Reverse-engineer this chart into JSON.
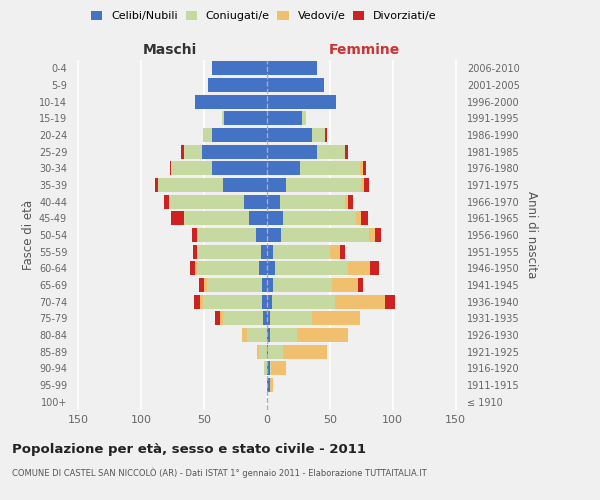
{
  "age_groups": [
    "100+",
    "95-99",
    "90-94",
    "85-89",
    "80-84",
    "75-79",
    "70-74",
    "65-69",
    "60-64",
    "55-59",
    "50-54",
    "45-49",
    "40-44",
    "35-39",
    "30-34",
    "25-29",
    "20-24",
    "15-19",
    "10-14",
    "5-9",
    "0-4"
  ],
  "birth_years": [
    "≤ 1910",
    "1911-1915",
    "1916-1920",
    "1921-1925",
    "1926-1930",
    "1931-1935",
    "1936-1940",
    "1941-1945",
    "1946-1950",
    "1951-1955",
    "1956-1960",
    "1961-1965",
    "1966-1970",
    "1971-1975",
    "1976-1980",
    "1981-1985",
    "1986-1990",
    "1991-1995",
    "1996-2000",
    "2001-2005",
    "2006-2010"
  ],
  "males": {
    "celibi": [
      0,
      0,
      0,
      0,
      0,
      3,
      4,
      4,
      6,
      5,
      9,
      14,
      18,
      35,
      44,
      52,
      44,
      34,
      57,
      47,
      44
    ],
    "coniugati": [
      0,
      0,
      2,
      6,
      16,
      32,
      47,
      44,
      50,
      50,
      46,
      52,
      60,
      52,
      32,
      14,
      7,
      2,
      0,
      0,
      0
    ],
    "vedovi": [
      0,
      0,
      0,
      2,
      4,
      2,
      2,
      2,
      1,
      1,
      1,
      0,
      0,
      0,
      0,
      0,
      0,
      0,
      0,
      0,
      0
    ],
    "divorziati": [
      0,
      0,
      0,
      0,
      0,
      4,
      5,
      4,
      4,
      3,
      4,
      10,
      4,
      2,
      1,
      2,
      0,
      0,
      0,
      0,
      0
    ]
  },
  "females": {
    "nubili": [
      0,
      2,
      2,
      1,
      2,
      2,
      4,
      5,
      6,
      5,
      11,
      13,
      10,
      15,
      26,
      40,
      36,
      28,
      55,
      45,
      40
    ],
    "coniugate": [
      0,
      0,
      1,
      12,
      22,
      34,
      50,
      47,
      58,
      45,
      70,
      58,
      52,
      60,
      48,
      22,
      10,
      3,
      0,
      0,
      0
    ],
    "vedove": [
      0,
      3,
      12,
      35,
      40,
      38,
      40,
      20,
      18,
      8,
      5,
      4,
      2,
      2,
      2,
      0,
      0,
      0,
      0,
      0,
      0
    ],
    "divorziate": [
      0,
      0,
      0,
      0,
      0,
      0,
      8,
      4,
      7,
      4,
      5,
      5,
      4,
      4,
      3,
      2,
      2,
      0,
      0,
      0,
      0
    ]
  },
  "colors": {
    "celibi_nubili": "#4472c4",
    "coniugati_e": "#c5d9a0",
    "vedovi_e": "#f0c06e",
    "divorziati_e": "#cc2222"
  },
  "xlim": 155,
  "title": "Popolazione per età, sesso e stato civile - 2011",
  "subtitle": "COMUNE DI CASTEL SAN NICCOLÒ (AR) - Dati ISTAT 1° gennaio 2011 - Elaborazione TUTTAITALIA.IT",
  "ylabel_left": "Fasce di età",
  "ylabel_right": "Anni di nascita",
  "xlabel_left": "Maschi",
  "xlabel_right": "Femmine",
  "background_color": "#f0f0f0",
  "bar_height": 0.85
}
